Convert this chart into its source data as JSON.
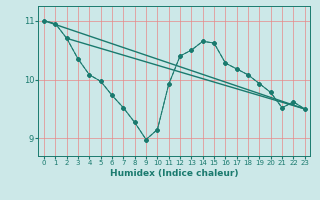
{
  "title": "",
  "xlabel": "Humidex (Indice chaleur)",
  "bg_color": "#cce8e8",
  "line_color": "#1a7a6e",
  "grid_color": "#e88888",
  "xlim": [
    -0.5,
    23.5
  ],
  "ylim": [
    8.7,
    11.25
  ],
  "xticks": [
    0,
    1,
    2,
    3,
    4,
    5,
    6,
    7,
    8,
    9,
    10,
    11,
    12,
    13,
    14,
    15,
    16,
    17,
    18,
    19,
    20,
    21,
    22,
    23
  ],
  "yticks": [
    9,
    10,
    11
  ],
  "main_x": [
    0,
    1,
    2,
    3,
    4,
    5,
    6,
    7,
    8,
    9,
    10,
    11,
    12,
    13,
    14,
    15,
    16,
    17,
    18,
    19,
    20,
    21,
    22,
    23
  ],
  "main_y": [
    11.0,
    10.95,
    10.7,
    10.35,
    10.08,
    9.97,
    9.73,
    9.52,
    9.27,
    8.98,
    9.15,
    9.92,
    10.4,
    10.5,
    10.65,
    10.62,
    10.28,
    10.18,
    10.08,
    9.93,
    9.78,
    9.52,
    9.62,
    9.5
  ],
  "trend1_x": [
    0,
    23
  ],
  "trend1_y": [
    11.0,
    9.5
  ],
  "trend2_x": [
    2,
    23
  ],
  "trend2_y": [
    10.7,
    9.5
  ]
}
